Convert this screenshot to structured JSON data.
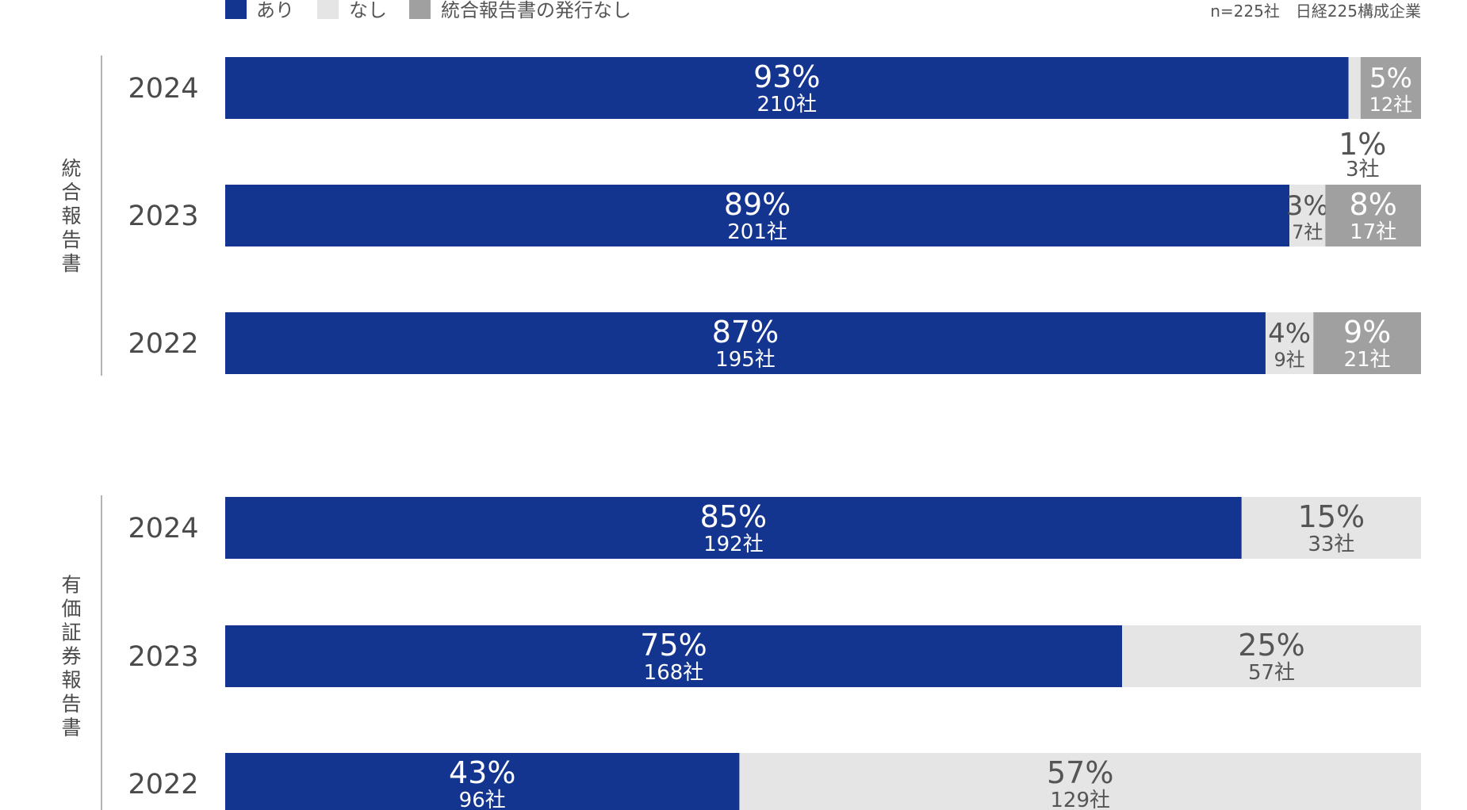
{
  "legend": [
    {
      "label": "あり",
      "color": "#14358f"
    },
    {
      "label": "なし",
      "color": "#e5e5e5"
    },
    {
      "label": "統合報告書の発行なし",
      "color": "#a0a0a0"
    }
  ],
  "note": "n=225社　日経225構成企業",
  "chart_data": {
    "type": "bar",
    "orientation": "horizontal",
    "stacked": true,
    "unit": "%",
    "xlim": [
      0,
      100
    ],
    "groups": [
      {
        "label": "統合報告書",
        "rows": [
          {
            "year": "2024",
            "segments": [
              {
                "series": "あり",
                "value": 93,
                "label": "93%",
                "count": "210社"
              },
              {
                "series": "なし",
                "value": 1,
                "label": "1%",
                "count": "3社"
              },
              {
                "series": "統合報告書の発行なし",
                "value": 5,
                "label": "5%",
                "count": "12社"
              }
            ]
          },
          {
            "year": "2023",
            "segments": [
              {
                "series": "あり",
                "value": 89,
                "label": "89%",
                "count": "201社"
              },
              {
                "series": "なし",
                "value": 3,
                "label": "3%",
                "count": "7社"
              },
              {
                "series": "統合報告書の発行なし",
                "value": 8,
                "label": "8%",
                "count": "17社"
              }
            ]
          },
          {
            "year": "2022",
            "segments": [
              {
                "series": "あり",
                "value": 87,
                "label": "87%",
                "count": "195社"
              },
              {
                "series": "なし",
                "value": 4,
                "label": "4%",
                "count": "9社"
              },
              {
                "series": "統合報告書の発行なし",
                "value": 9,
                "label": "9%",
                "count": "21社"
              }
            ]
          }
        ]
      },
      {
        "label": "有価証券報告書",
        "rows": [
          {
            "year": "2024",
            "segments": [
              {
                "series": "あり",
                "value": 85,
                "label": "85%",
                "count": "192社"
              },
              {
                "series": "なし",
                "value": 15,
                "label": "15%",
                "count": "33社"
              }
            ]
          },
          {
            "year": "2023",
            "segments": [
              {
                "series": "あり",
                "value": 75,
                "label": "75%",
                "count": "168社"
              },
              {
                "series": "なし",
                "value": 25,
                "label": "25%",
                "count": "57社"
              }
            ]
          },
          {
            "year": "2022",
            "segments": [
              {
                "series": "あり",
                "value": 43,
                "label": "43%",
                "count": "96社"
              },
              {
                "series": "なし",
                "value": 57,
                "label": "57%",
                "count": "129社"
              }
            ]
          }
        ]
      }
    ]
  }
}
